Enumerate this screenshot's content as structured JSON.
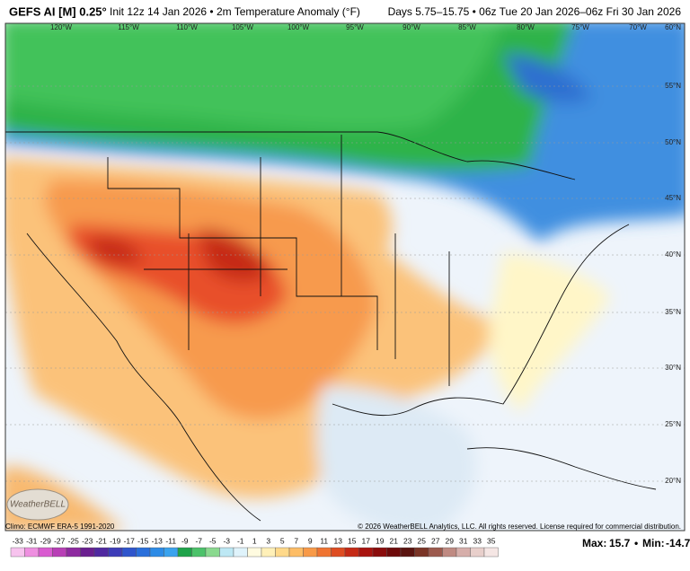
{
  "header": {
    "title": "GEFS AI [M] 0.25°",
    "subtitle": "Init 12z 14 Jan 2026 • 2m Temperature Anomaly (°F)",
    "valid": "Days 5.75–15.75 • 06z Tue 20 Jan 2026–06z Fri 30 Jan 2026"
  },
  "map": {
    "longitude_labels": [
      "120°W",
      "115°W",
      "110°W",
      "105°W",
      "100°W",
      "95°W",
      "90°W",
      "85°W",
      "80°W",
      "75°W",
      "70°W"
    ],
    "latitude_labels": [
      "60°N",
      "55°N",
      "50°N",
      "45°N",
      "40°N",
      "35°N",
      "30°N",
      "25°N",
      "20°N"
    ],
    "logo": "WeatherBELL"
  },
  "footer": {
    "climo": "Climo: ECMWF ERA-5 1991-2020",
    "copyright": "© 2026 WeatherBELL Analytics, LLC. All rights reserved. License required for commercial distribution."
  },
  "colorbar": {
    "ticks": [
      -33,
      -31,
      -29,
      -27,
      -25,
      -23,
      -21,
      -19,
      -17,
      -15,
      -13,
      -11,
      -9,
      -7,
      -5,
      -3,
      -1,
      1,
      3,
      5,
      7,
      9,
      11,
      13,
      15,
      17,
      19,
      21,
      23,
      25,
      27,
      29,
      31,
      33,
      35
    ]
  },
  "stats": {
    "max_label": "Max:",
    "max": 15.7,
    "separator": "•",
    "min_label": "Min:",
    "min": -14.7
  }
}
